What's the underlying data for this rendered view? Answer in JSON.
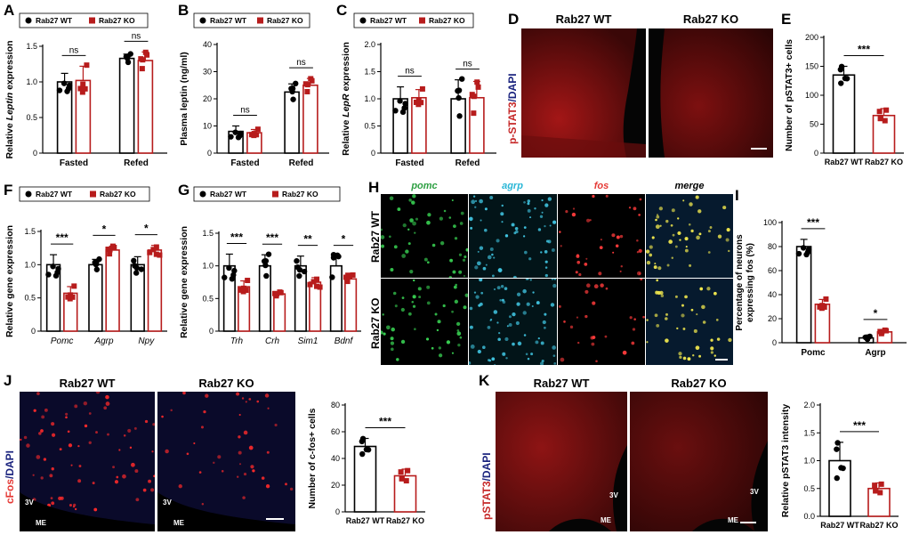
{
  "colors": {
    "wt": "#000000",
    "ko": "#b71c1c",
    "pomc": "#2ea043",
    "agrp": "#29b6d6",
    "fos": "#e53935",
    "dapi": "#1a237e"
  },
  "legend": {
    "wt": "Rab27 WT",
    "ko": "Rab27 KO"
  },
  "groups": {
    "wt": "Rab27 WT",
    "ko": "Rab27 KO"
  },
  "panels": {
    "A": {
      "label": "A"
    },
    "B": {
      "label": "B"
    },
    "C": {
      "label": "C"
    },
    "D": {
      "label": "D",
      "stain": "p-STAT3/DAPI",
      "stain_a": "p-STAT3",
      "stain_b": "/DAPI"
    },
    "E": {
      "label": "E"
    },
    "F": {
      "label": "F"
    },
    "G": {
      "label": "G"
    },
    "H": {
      "label": "H",
      "cols": [
        "pomc",
        "agrp",
        "fos",
        "merge"
      ]
    },
    "I": {
      "label": "I"
    },
    "J": {
      "label": "J",
      "stain_a": "cFos",
      "stain_b": "/DAPI"
    },
    "K": {
      "label": "K",
      "stain_a": "pSTAT3",
      "stain_b": "/DAPI"
    }
  },
  "regions": {
    "v3": "3V",
    "me": "ME"
  },
  "chart_data": [
    {
      "id": "A",
      "type": "bar",
      "ylabel": "Relative Leptin expression",
      "ylabel_pre": "Relative ",
      "ylabel_ital": "Leptin",
      "ylabel_post": " expression",
      "categories": [
        "Fasted",
        "Refed"
      ],
      "ylim": [
        0,
        1.5
      ],
      "yticks": [
        "0",
        "0.5",
        "1.0",
        "1.5"
      ],
      "series": [
        {
          "name": "Rab27 WT",
          "values": [
            1.0,
            1.33
          ],
          "err": [
            0.12,
            0.06
          ]
        },
        {
          "name": "Rab27 KO",
          "values": [
            1.02,
            1.3
          ],
          "err": [
            0.2,
            0.12
          ]
        }
      ],
      "annotations": [
        "ns",
        "ns"
      ]
    },
    {
      "id": "B",
      "type": "bar",
      "ylabel": "Plasma leptin (ng/ml)",
      "categories": [
        "Fasted",
        "Refed"
      ],
      "ylim": [
        0,
        40
      ],
      "yticks": [
        "0",
        "10",
        "20",
        "30",
        "40"
      ],
      "series": [
        {
          "name": "Rab27 WT",
          "values": [
            8,
            22.5
          ],
          "err": [
            2,
            3
          ]
        },
        {
          "name": "Rab27 KO",
          "values": [
            7.5,
            25
          ],
          "err": [
            1.2,
            2.5
          ]
        }
      ],
      "annotations": [
        "ns",
        "ns"
      ]
    },
    {
      "id": "C",
      "type": "bar",
      "ylabel": "Relative LepR expression",
      "ylabel_pre": "Relative ",
      "ylabel_ital": "LepR",
      "ylabel_post": " expression",
      "categories": [
        "Fasted",
        "Refed"
      ],
      "ylim": [
        0,
        2.0
      ],
      "yticks": [
        "0",
        "0.5",
        "1.0",
        "1.5",
        "2.0"
      ],
      "series": [
        {
          "name": "Rab27 WT",
          "values": [
            1.0,
            1.0
          ],
          "err": [
            0.22,
            0.35
          ]
        },
        {
          "name": "Rab27 KO",
          "values": [
            1.02,
            1.02
          ],
          "err": [
            0.15,
            0.3
          ]
        }
      ],
      "annotations": [
        "ns",
        "ns"
      ]
    },
    {
      "id": "E",
      "type": "bar",
      "ylabel": "Number of pSTAT3+ cells",
      "categories": [
        "Rab27 WT",
        "Rab27 KO"
      ],
      "ylim": [
        0,
        200
      ],
      "yticks": [
        "0",
        "50",
        "100",
        "150",
        "200"
      ],
      "values": [
        135,
        65
      ],
      "err": [
        15,
        12
      ],
      "annotation": "***"
    },
    {
      "id": "F",
      "type": "bar",
      "ylabel": "Relative gene expression",
      "categories": [
        "Pomc",
        "Agrp",
        "Npy"
      ],
      "ylim": [
        0,
        1.5
      ],
      "yticks": [
        "0",
        "0.5",
        "1.0",
        "1.5"
      ],
      "series": [
        {
          "name": "Rab27 WT",
          "values": [
            1.0,
            1.0,
            1.0
          ],
          "err": [
            0.15,
            0.08,
            0.12
          ]
        },
        {
          "name": "Rab27 KO",
          "values": [
            0.57,
            1.22,
            1.22
          ],
          "err": [
            0.1,
            0.06,
            0.07
          ]
        }
      ],
      "annotations": [
        "***",
        "*",
        "*"
      ]
    },
    {
      "id": "G",
      "type": "bar",
      "ylabel": "Relative gene expression",
      "categories": [
        "Trh",
        "Crh",
        "Sim1",
        "Bdnf"
      ],
      "ylim": [
        0,
        1.5
      ],
      "yticks": [
        "0",
        "0.5",
        "1.0",
        "1.5"
      ],
      "series": [
        {
          "name": "Rab27 WT",
          "values": [
            1.0,
            1.0,
            1.0,
            1.0
          ],
          "err": [
            0.18,
            0.17,
            0.15,
            0.15
          ]
        },
        {
          "name": "Rab27 KO",
          "values": [
            0.68,
            0.57,
            0.75,
            0.8
          ],
          "err": [
            0.09,
            0.03,
            0.07,
            0.05
          ]
        }
      ],
      "annotations": [
        "***",
        "***",
        "**",
        "*"
      ]
    },
    {
      "id": "I",
      "type": "bar",
      "ylabel": "Percentage of neurons expressing fos (%)",
      "ylabel_l1": "Percentage of neurons",
      "ylabel_l2": "expressing fos (%)",
      "categories": [
        "Pomc",
        "Agrp"
      ],
      "ylim": [
        0,
        100
      ],
      "yticks": [
        "0",
        "20",
        "40",
        "60",
        "80",
        "100"
      ],
      "series": [
        {
          "name": "Rab27 WT",
          "values": [
            80,
            4
          ],
          "err": [
            6,
            1.2
          ]
        },
        {
          "name": "Rab27 KO",
          "values": [
            32,
            9
          ],
          "err": [
            4,
            1.5
          ]
        }
      ],
      "annotations": [
        "***",
        "*"
      ]
    },
    {
      "id": "J",
      "type": "bar",
      "ylabel": "Number of c-fos+ cells",
      "categories": [
        "Rab27 WT",
        "Rab27 KO"
      ],
      "ylim": [
        0,
        80
      ],
      "yticks": [
        "0",
        "20",
        "40",
        "60",
        "80"
      ],
      "values": [
        49,
        27
      ],
      "err": [
        6,
        5
      ],
      "annotation": "***"
    },
    {
      "id": "K",
      "type": "bar",
      "ylabel": "Relative pSTAT3 intensity",
      "categories": [
        "Rab27 WT",
        "Rab27 KO"
      ],
      "ylim": [
        0,
        2.0
      ],
      "yticks": [
        "0.0",
        "0.5",
        "1.0",
        "1.5",
        "2.0"
      ],
      "values": [
        1.0,
        0.5
      ],
      "err": [
        0.33,
        0.1
      ],
      "annotation": "***"
    }
  ]
}
